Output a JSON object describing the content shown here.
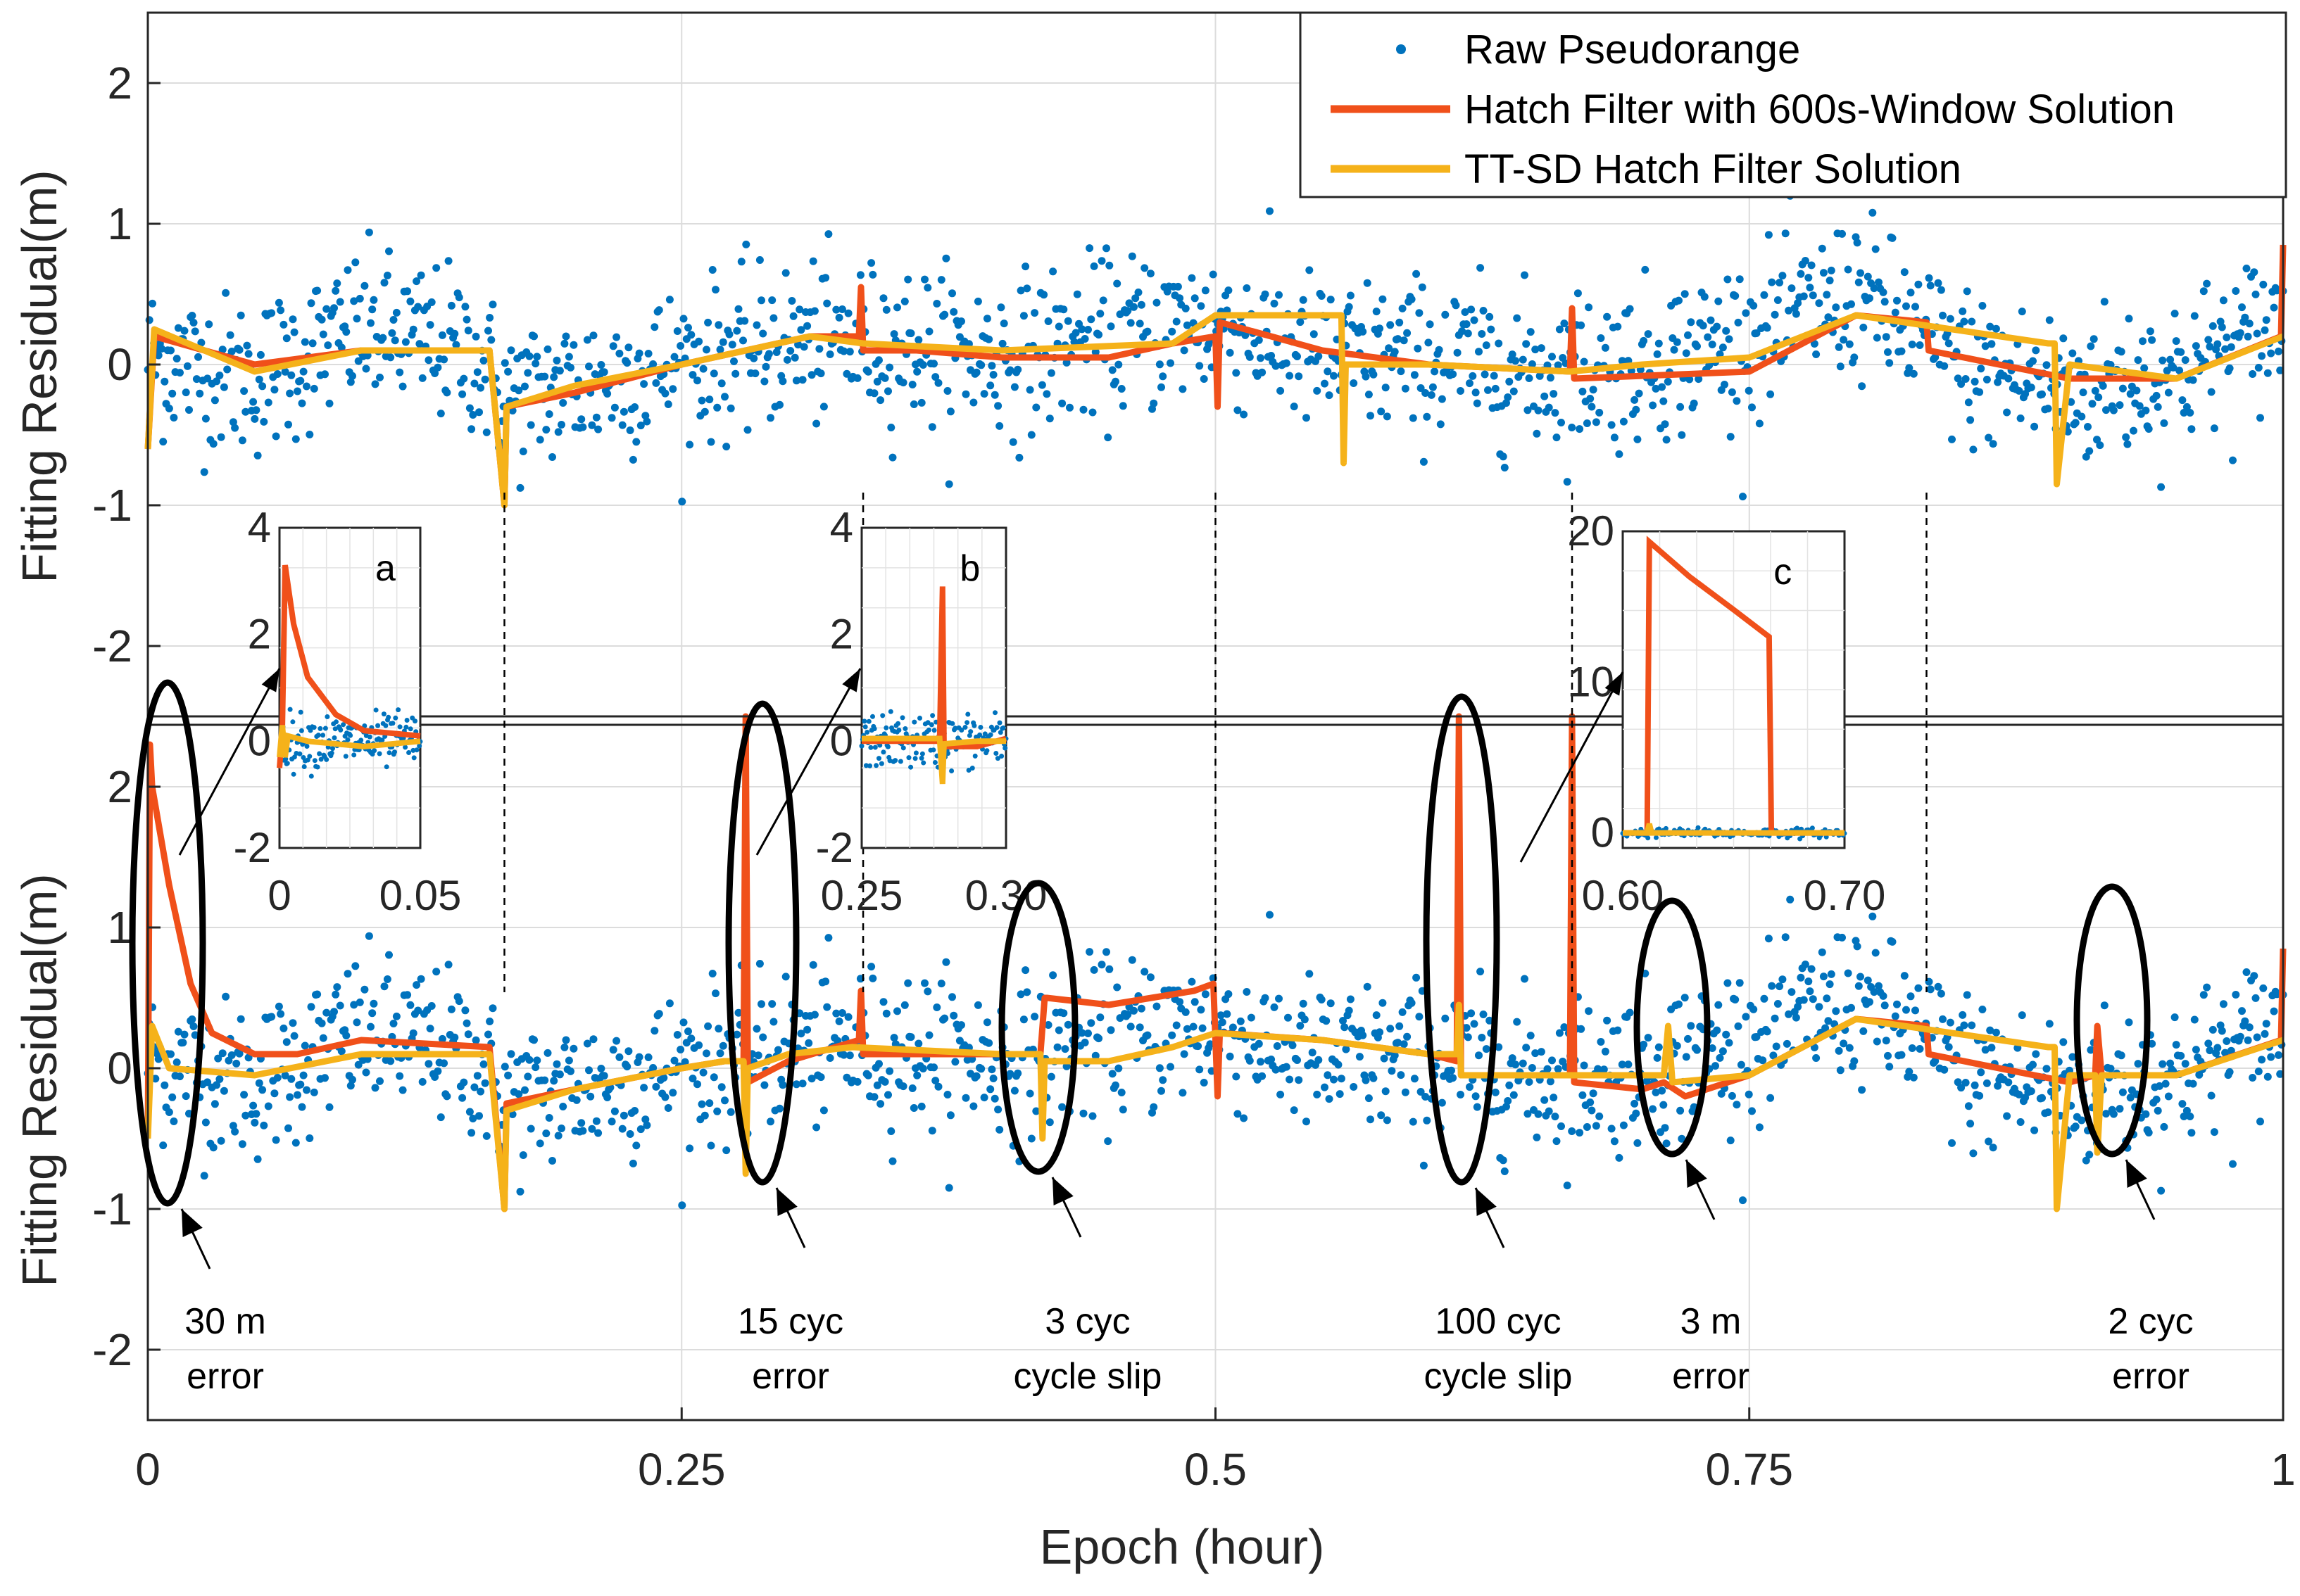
{
  "chart_data": {
    "type": "scatter",
    "xlabel": "Epoch (hour)",
    "ylabel": "Fitting Residual(m)",
    "xlim": [
      0,
      1
    ],
    "ylim": [
      -2.5,
      2.5
    ],
    "x_ticks": [
      0,
      0.25,
      0.5,
      0.75,
      1
    ],
    "x_tick_labels": [
      "0",
      "0.25",
      "0.5",
      "0.75",
      "1"
    ],
    "y_ticks": [
      -2,
      -1,
      0,
      1,
      2
    ],
    "y_tick_labels": [
      "-2",
      "-1",
      "0",
      "1",
      "2"
    ],
    "grid": true,
    "legend_position": "top-right",
    "series": [
      {
        "name": "Raw Pseudorange",
        "style": "dots",
        "color": "#0072bd"
      },
      {
        "name": "Hatch Filter with 600s-Window Solution",
        "style": "line",
        "color": "#f0501a"
      },
      {
        "name": "TT-SD Hatch Filter Solution",
        "style": "line",
        "color": "#f5b21a"
      }
    ],
    "raw_trend": {
      "x": [
        0,
        0.05,
        0.1,
        0.15,
        0.17,
        0.2,
        0.25,
        0.3,
        0.35,
        0.4,
        0.45,
        0.5,
        0.55,
        0.6,
        0.65,
        0.7,
        0.75,
        0.8,
        0.85,
        0.9,
        0.95,
        1.0
      ],
      "y": [
        0.05,
        -0.1,
        0.25,
        0.1,
        -0.25,
        -0.15,
        0.0,
        0.15,
        0.15,
        0.05,
        0.2,
        0.3,
        0.05,
        0.05,
        -0.05,
        0.0,
        0.2,
        0.5,
        0.0,
        -0.2,
        -0.05,
        0.3
      ],
      "noise_sd": 0.28
    },
    "panels": [
      {
        "name": "top",
        "hatch": {
          "x": [
            0,
            0.003,
            0.05,
            0.1,
            0.16,
            0.167,
            0.168,
            0.2,
            0.25,
            0.31,
            0.333,
            0.334,
            0.335,
            0.36,
            0.4,
            0.45,
            0.48,
            0.5,
            0.501,
            0.502,
            0.55,
            0.6,
            0.666,
            0.667,
            0.668,
            0.75,
            0.8,
            0.833,
            0.834,
            0.9,
            0.95,
            0.999,
            1.0
          ],
          "y": [
            -0.6,
            0.2,
            0.0,
            0.1,
            0.1,
            -1.0,
            -0.3,
            -0.2,
            0.0,
            0.2,
            0.2,
            0.55,
            0.1,
            0.1,
            0.05,
            0.05,
            0.15,
            0.2,
            -0.3,
            0.3,
            0.1,
            0.0,
            -0.05,
            0.4,
            -0.1,
            -0.05,
            0.35,
            0.3,
            0.1,
            -0.1,
            -0.1,
            0.2,
            0.85
          ]
        },
        "ttsd": {
          "x": [
            0,
            0.003,
            0.05,
            0.1,
            0.16,
            0.167,
            0.168,
            0.2,
            0.25,
            0.31,
            0.335,
            0.4,
            0.48,
            0.5,
            0.55,
            0.559,
            0.56,
            0.561,
            0.6,
            0.666,
            0.7,
            0.75,
            0.8,
            0.89,
            0.893,
            0.894,
            0.9,
            0.95,
            1.0
          ],
          "y": [
            -0.6,
            0.25,
            -0.05,
            0.1,
            0.1,
            -1.0,
            -0.3,
            -0.15,
            0.0,
            0.2,
            0.15,
            0.1,
            0.15,
            0.35,
            0.35,
            0.35,
            -0.7,
            0.0,
            0.0,
            -0.05,
            0.0,
            0.05,
            0.35,
            0.15,
            0.15,
            -0.85,
            0.0,
            -0.1,
            0.2
          ]
        }
      },
      {
        "name": "bottom",
        "hatch": {
          "x": [
            0,
            0.001,
            0.002,
            0.01,
            0.02,
            0.03,
            0.05,
            0.07,
            0.1,
            0.16,
            0.167,
            0.168,
            0.2,
            0.25,
            0.27,
            0.279,
            0.28,
            0.281,
            0.3,
            0.333,
            0.334,
            0.335,
            0.4,
            0.418,
            0.42,
            0.421,
            0.45,
            0.47,
            0.49,
            0.499,
            0.5,
            0.501,
            0.502,
            0.55,
            0.6,
            0.613,
            0.614,
            0.615,
            0.65,
            0.666,
            0.667,
            0.668,
            0.7,
            0.71,
            0.72,
            0.75,
            0.8,
            0.833,
            0.834,
            0.9,
            0.912,
            0.913,
            0.915,
            0.95,
            0.999,
            1.0
          ],
          "y": [
            -0.5,
            2.3,
            2.0,
            1.3,
            0.6,
            0.25,
            0.1,
            0.1,
            0.2,
            0.15,
            -1.0,
            -0.25,
            -0.15,
            0.0,
            0.05,
            0.05,
            2.5,
            -0.1,
            0.05,
            0.2,
            0.55,
            0.1,
            0.1,
            0.1,
            0.5,
            0.5,
            0.45,
            0.5,
            0.55,
            0.6,
            0.2,
            -0.2,
            0.25,
            0.2,
            0.1,
            0.05,
            2.5,
            -0.05,
            -0.05,
            -0.05,
            2.5,
            -0.1,
            -0.15,
            -0.1,
            -0.2,
            -0.05,
            0.35,
            0.3,
            0.1,
            -0.1,
            -0.05,
            0.3,
            -0.05,
            -0.05,
            0.2,
            0.85
          ]
        },
        "ttsd": {
          "x": [
            0,
            0.002,
            0.01,
            0.05,
            0.1,
            0.16,
            0.167,
            0.168,
            0.2,
            0.25,
            0.27,
            0.279,
            0.28,
            0.281,
            0.3,
            0.33,
            0.4,
            0.418,
            0.419,
            0.42,
            0.45,
            0.48,
            0.5,
            0.55,
            0.6,
            0.613,
            0.614,
            0.615,
            0.65,
            0.7,
            0.71,
            0.712,
            0.714,
            0.75,
            0.8,
            0.89,
            0.893,
            0.894,
            0.9,
            0.912,
            0.913,
            0.915,
            0.95,
            1.0
          ],
          "y": [
            -0.5,
            0.3,
            0.0,
            -0.05,
            0.1,
            0.1,
            -1.0,
            -0.3,
            -0.15,
            0.0,
            0.05,
            0.05,
            -0.75,
            0.0,
            0.1,
            0.15,
            0.1,
            0.1,
            -0.5,
            0.05,
            0.05,
            0.15,
            0.25,
            0.2,
            0.1,
            0.1,
            0.45,
            -0.05,
            -0.05,
            -0.05,
            -0.05,
            0.3,
            -0.1,
            -0.05,
            0.35,
            0.15,
            0.15,
            -1.0,
            -0.05,
            -0.05,
            -0.6,
            -0.05,
            -0.05,
            0.2
          ]
        }
      }
    ],
    "insets": [
      {
        "label": "a",
        "xlim": [
          0,
          0.05
        ],
        "ylim": [
          -2,
          4
        ],
        "x_tick_labels": [
          "0",
          "0.05"
        ],
        "y_tick_labels": [
          "-2",
          "0",
          "2",
          "4"
        ],
        "hatch": {
          "x": [
            0,
            0.001,
            0.002,
            0.005,
            0.01,
            0.02,
            0.03,
            0.05
          ],
          "y": [
            -0.5,
            0.2,
            3.3,
            2.2,
            1.2,
            0.5,
            0.2,
            0.1
          ]
        },
        "ttsd": {
          "x": [
            0,
            0.001,
            0.002,
            0.003,
            0.01,
            0.03,
            0.05
          ],
          "y": [
            -0.3,
            0.3,
            -0.3,
            0.1,
            0.0,
            -0.1,
            0.0
          ]
        },
        "raw_level": 0.0,
        "raw_sd": 0.25
      },
      {
        "label": "b",
        "xlim": [
          0.25,
          0.3
        ],
        "ylim": [
          -2,
          4
        ],
        "x_tick_labels": [
          "0.25",
          "0.30"
        ],
        "y_tick_labels": [
          "-2",
          "0",
          "2",
          "4"
        ],
        "hatch": {
          "x": [
            0.25,
            0.277,
            0.278,
            0.2785,
            0.29,
            0.3
          ],
          "y": [
            0.0,
            0.0,
            2.9,
            -0.1,
            -0.1,
            0.05
          ]
        },
        "ttsd": {
          "x": [
            0.25,
            0.277,
            0.278,
            0.2785,
            0.29,
            0.3
          ],
          "y": [
            0.05,
            0.05,
            -0.8,
            -0.05,
            0.0,
            0.0
          ]
        },
        "raw_level": 0.0,
        "raw_sd": 0.25
      },
      {
        "label": "c",
        "xlim": [
          0.6,
          0.7
        ],
        "ylim": [
          -1,
          20
        ],
        "x_tick_labels": [
          "0.60",
          "0.70"
        ],
        "y_tick_labels": [
          "0",
          "10",
          "20"
        ],
        "y_ticks": [
          0,
          10,
          20
        ],
        "hatch": {
          "x": [
            0.6,
            0.611,
            0.612,
            0.63,
            0.65,
            0.666,
            0.667,
            0.7
          ],
          "y": [
            0.0,
            0.0,
            19.3,
            17.0,
            14.8,
            13.0,
            0.0,
            0.0
          ]
        },
        "ttsd": {
          "x": [
            0.6,
            0.611,
            0.612,
            0.613,
            0.7
          ],
          "y": [
            0.0,
            0.0,
            0.6,
            0.0,
            0.0
          ]
        },
        "raw_level": 0.0,
        "raw_sd": 0.25
      }
    ],
    "annotations": [
      {
        "line1": "30 m",
        "line2": "error"
      },
      {
        "line1": "15 cyc",
        "line2": "error"
      },
      {
        "line1": "3 cyc",
        "line2": "cycle slip"
      },
      {
        "line1": "100 cyc",
        "line2": "cycle slip"
      },
      {
        "line1": "3 m",
        "line2": "error"
      },
      {
        "line1": "2 cyc",
        "line2": "error"
      }
    ]
  }
}
